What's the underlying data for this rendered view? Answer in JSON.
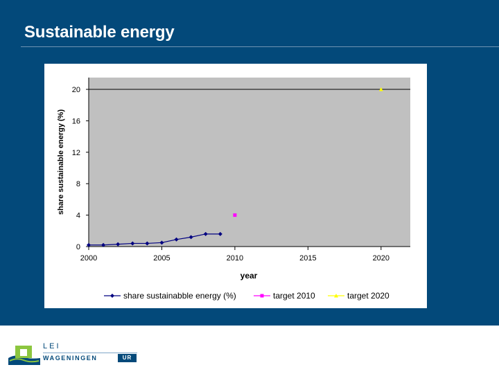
{
  "slide": {
    "title": "Sustainable energy"
  },
  "colors": {
    "background": "#03497a",
    "plot_area": "#c0c0c0",
    "series1": "#000080",
    "target2010": "#ff00ff",
    "target2020": "#ffff00"
  },
  "chart_data": {
    "type": "line",
    "title": "",
    "xlabel": "year",
    "ylabel": "share sustainable energy (%)",
    "xlim": [
      2000,
      2022
    ],
    "ylim": [
      0,
      21.5
    ],
    "xticks": [
      2000,
      2005,
      2010,
      2015,
      2020
    ],
    "yticks": [
      0,
      4,
      8,
      12,
      16,
      20
    ],
    "x_tick_labels": [
      "2000",
      "2005",
      "2010",
      "2015",
      "2020"
    ],
    "y_tick_labels": [
      "0",
      "4",
      "8",
      "12",
      "16",
      "20"
    ],
    "reference_line": 20,
    "grid": false,
    "legend_position": "bottom",
    "series": [
      {
        "name": "share sustainabble energy (%)",
        "marker": "diamond",
        "x": [
          2000,
          2001,
          2002,
          2003,
          2004,
          2005,
          2006,
          2007,
          2008,
          2009
        ],
        "y": [
          0.2,
          0.2,
          0.3,
          0.4,
          0.4,
          0.5,
          0.9,
          1.2,
          1.6,
          1.6
        ]
      },
      {
        "name": "target 2010",
        "marker": "square",
        "x": [
          2010
        ],
        "y": [
          4
        ]
      },
      {
        "name": "target 2020",
        "marker": "triangle",
        "x": [
          2020
        ],
        "y": [
          20
        ]
      }
    ]
  },
  "footer": {
    "org": "LEI",
    "university": "WAGENINGEN",
    "university_suffix": "UR"
  }
}
